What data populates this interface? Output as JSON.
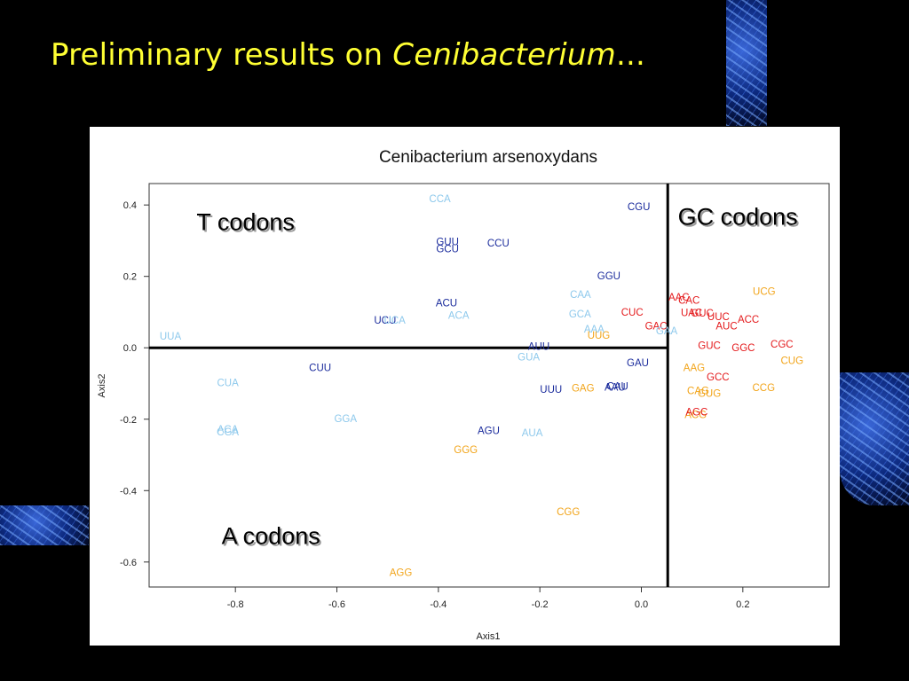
{
  "slide": {
    "title_prefix": "Preliminary results on ",
    "title_italic": "Cenibacterium",
    "title_suffix": "..."
  },
  "colors": {
    "background": "#000000",
    "title": "#ffff33",
    "T": "#1a2b9c",
    "A": "#f2a51b",
    "G": "#e41a1c",
    "light": "#8ec9ec"
  },
  "chart_data": {
    "type": "scatter",
    "title": "Cenibacterium arsenoxydans",
    "xlabel": "Axis1",
    "ylabel": "Axis2",
    "xlim": [
      -0.97,
      0.37
    ],
    "ylim": [
      -0.67,
      0.46
    ],
    "x_ticks": [
      -0.8,
      -0.6,
      -0.4,
      -0.2,
      0.0,
      0.2
    ],
    "x_tick_labels": [
      "-0.8",
      "-0.6",
      "-0.4",
      "-0.2",
      "0.0",
      "0.2"
    ],
    "y_ticks": [
      0.4,
      0.2,
      0.0,
      -0.2,
      -0.4,
      -0.6
    ],
    "y_tick_labels": [
      "0.4",
      "0.2",
      "0.0",
      "-0.2",
      "-0.4",
      "-0.6"
    ],
    "reference_lines": {
      "horizontal_y": 0.0,
      "vertical_x": 0.052
    },
    "group_labels": [
      {
        "text": "T codons",
        "x": -0.78,
        "y": 0.33
      },
      {
        "text": "GC codons",
        "x": 0.19,
        "y": 0.345
      },
      {
        "text": "A codons",
        "x": -0.73,
        "y": -0.55
      }
    ],
    "series": [
      {
        "name": "T",
        "color": "#1a2b9c",
        "points": [
          {
            "label": "CGU",
            "x": -0.005,
            "y": 0.395
          },
          {
            "label": "GUU",
            "x": -0.382,
            "y": 0.297
          },
          {
            "label": "GCU",
            "x": -0.382,
            "y": 0.278
          },
          {
            "label": "CCU",
            "x": -0.282,
            "y": 0.293
          },
          {
            "label": "GGU",
            "x": -0.064,
            "y": 0.202
          },
          {
            "label": "ACU",
            "x": -0.384,
            "y": 0.126
          },
          {
            "label": "UCU",
            "x": -0.505,
            "y": 0.078
          },
          {
            "label": "AUU",
            "x": -0.202,
            "y": 0.004
          },
          {
            "label": "CUU",
            "x": -0.633,
            "y": -0.055
          },
          {
            "label": "GAU",
            "x": -0.007,
            "y": -0.042
          },
          {
            "label": "UUU",
            "x": -0.178,
            "y": -0.116
          },
          {
            "label": "CAU",
            "x": -0.047,
            "y": -0.107
          },
          {
            "label": "AAU",
            "x": -0.052,
            "y": -0.11
          },
          {
            "label": "AGU",
            "x": -0.301,
            "y": -0.232
          }
        ]
      },
      {
        "name": "A",
        "color": "#f2a51b",
        "points": [
          {
            "label": "UCG",
            "x": 0.242,
            "y": 0.158
          },
          {
            "label": "UUG",
            "x": -0.084,
            "y": 0.035
          },
          {
            "label": "CUG",
            "x": 0.297,
            "y": -0.035
          },
          {
            "label": "AAG",
            "x": 0.104,
            "y": -0.055
          },
          {
            "label": "GAG",
            "x": -0.115,
            "y": -0.112
          },
          {
            "label": "CAG",
            "x": 0.112,
            "y": -0.12
          },
          {
            "label": "GUG",
            "x": 0.134,
            "y": -0.127
          },
          {
            "label": "CCG",
            "x": 0.241,
            "y": -0.111
          },
          {
            "label": "ACG",
            "x": 0.107,
            "y": -0.187
          },
          {
            "label": "GGG",
            "x": -0.346,
            "y": -0.285
          },
          {
            "label": "CGG",
            "x": -0.144,
            "y": -0.459
          },
          {
            "label": "AGG",
            "x": -0.474,
            "y": -0.629
          }
        ]
      },
      {
        "name": "G",
        "color": "#e41a1c",
        "points": [
          {
            "label": "AAC",
            "x": 0.074,
            "y": 0.142
          },
          {
            "label": "CAC",
            "x": 0.094,
            "y": 0.133
          },
          {
            "label": "UAC",
            "x": 0.099,
            "y": 0.099
          },
          {
            "label": "GUC",
            "x": 0.12,
            "y": 0.097
          },
          {
            "label": "UUC",
            "x": 0.152,
            "y": 0.088
          },
          {
            "label": "CUC",
            "x": -0.018,
            "y": 0.1
          },
          {
            "label": "ACC",
            "x": 0.211,
            "y": 0.08
          },
          {
            "label": "AUC",
            "x": 0.168,
            "y": 0.062
          },
          {
            "label": "GAC",
            "x": 0.029,
            "y": 0.061
          },
          {
            "label": "CGC",
            "x": 0.277,
            "y": 0.01
          },
          {
            "label": "GUC",
            "x": 0.134,
            "y": 0.007
          },
          {
            "label": "GGC",
            "x": 0.201,
            "y": 0.0
          },
          {
            "label": "GCC",
            "x": 0.151,
            "y": -0.082
          },
          {
            "label": "AGC",
            "x": 0.109,
            "y": -0.179
          }
        ]
      },
      {
        "name": "light",
        "color": "#8ec9ec",
        "points": [
          {
            "label": "CCA",
            "x": -0.397,
            "y": 0.418
          },
          {
            "label": "CAA",
            "x": -0.12,
            "y": 0.149
          },
          {
            "label": "UCA",
            "x": -0.486,
            "y": 0.077
          },
          {
            "label": "ACA",
            "x": -0.36,
            "y": 0.091
          },
          {
            "label": "GCA",
            "x": -0.121,
            "y": 0.095
          },
          {
            "label": "AAA",
            "x": -0.093,
            "y": 0.053
          },
          {
            "label": "GAA",
            "x": 0.05,
            "y": 0.048
          },
          {
            "label": "UUA",
            "x": -0.928,
            "y": 0.033
          },
          {
            "label": "GUA",
            "x": -0.222,
            "y": -0.026
          },
          {
            "label": "CUA",
            "x": -0.815,
            "y": -0.097
          },
          {
            "label": "GGA",
            "x": -0.583,
            "y": -0.198
          },
          {
            "label": "ACA",
            "x": -0.815,
            "y": -0.228
          },
          {
            "label": "CGA",
            "x": -0.815,
            "y": -0.236
          },
          {
            "label": "AUA",
            "x": -0.215,
            "y": -0.238
          }
        ]
      }
    ]
  }
}
